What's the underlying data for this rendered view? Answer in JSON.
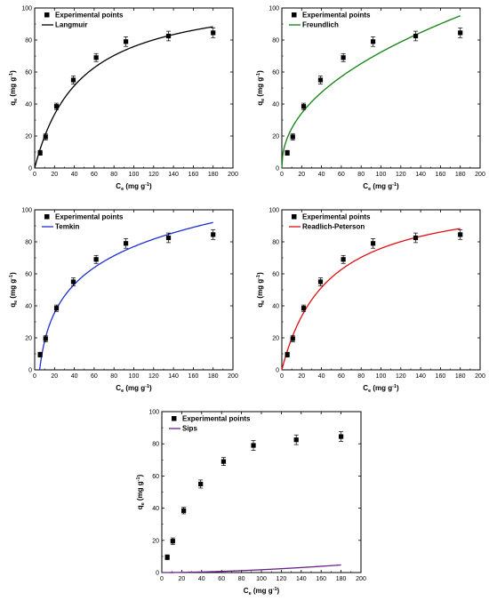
{
  "chart_data": [
    {
      "type": "scatter",
      "panel": "top-left",
      "xlabel": "Ce (mg g-1)",
      "ylabel": "qe (mg g-1)",
      "xlabel_main": "C",
      "xlabel_sub": "e",
      "xlabel_unit": " (mg g",
      "xlabel_sup": "-1",
      "xlabel_close": ")",
      "ylabel_main": "q",
      "ylabel_sub": "e",
      "ylabel_unit": " (mg g",
      "ylabel_sup": "-1",
      "ylabel_close": ")",
      "xlim": [
        0,
        200
      ],
      "ylim": [
        0,
        100
      ],
      "xticks": [
        0,
        20,
        40,
        60,
        80,
        100,
        120,
        140,
        160,
        180,
        200
      ],
      "yticks": [
        0,
        20,
        40,
        60,
        80,
        100
      ],
      "grid": false,
      "legend_placement": "top-left",
      "points": {
        "name": "Experimental points",
        "x": [
          5.5,
          11,
          22,
          39,
          62,
          92,
          135,
          180
        ],
        "y": [
          9.5,
          19.5,
          38.5,
          55,
          69,
          79,
          82.5,
          84.5
        ],
        "err": [
          1.5,
          2,
          2,
          2.5,
          2.5,
          3,
          3,
          3
        ]
      },
      "fit": {
        "name": "Langmuir",
        "model": "langmuir",
        "color": "#000000",
        "params": {
          "qm": 111,
          "KL": 0.0216
        },
        "x_range": [
          0,
          180
        ]
      }
    },
    {
      "type": "scatter",
      "panel": "top-right",
      "xlabel": "Ce (mg g-1)",
      "ylabel": "qe (mg g-1)",
      "xlabel_main": "C",
      "xlabel_sub": "e",
      "xlabel_unit": " (mg g",
      "xlabel_sup": "-1",
      "xlabel_close": ")",
      "ylabel_main": "q",
      "ylabel_sub": "e",
      "ylabel_unit": " (mg g",
      "ylabel_sup": "-1",
      "ylabel_close": ")",
      "xlim": [
        0,
        200
      ],
      "ylim": [
        0,
        100
      ],
      "xticks": [
        0,
        20,
        40,
        60,
        80,
        100,
        120,
        140,
        160,
        180,
        200
      ],
      "yticks": [
        0,
        20,
        40,
        60,
        80,
        100
      ],
      "grid": false,
      "legend_placement": "top-left",
      "points": {
        "name": "Experimental points",
        "x": [
          5.5,
          11,
          22,
          39,
          62,
          92,
          135,
          180
        ],
        "y": [
          9.5,
          19.5,
          38.5,
          55,
          69,
          79,
          82.5,
          84.5
        ],
        "err": [
          1.5,
          2,
          2,
          2.5,
          2.5,
          3,
          3,
          3
        ]
      },
      "fit": {
        "name": "Freundlich",
        "model": "freundlich",
        "color": "#108010",
        "params": {
          "KF": 8.5,
          "n": 2.15
        },
        "x_range": [
          0,
          180
        ]
      }
    },
    {
      "type": "scatter",
      "panel": "middle-left",
      "xlabel": "Ce (mg g-1)",
      "ylabel": "qe (mg g-1)",
      "xlabel_main": "C",
      "xlabel_sub": "e",
      "xlabel_unit": " (mg g",
      "xlabel_sup": "-1",
      "xlabel_close": ")",
      "ylabel_main": "q",
      "ylabel_sub": "e",
      "ylabel_unit": " (mg g",
      "ylabel_sup": "-1",
      "ylabel_close": ")",
      "xlim": [
        0,
        200
      ],
      "ylim": [
        0,
        100
      ],
      "xticks": [
        0,
        20,
        40,
        60,
        80,
        100,
        120,
        140,
        160,
        180,
        200
      ],
      "yticks": [
        0,
        20,
        40,
        60,
        80,
        100
      ],
      "grid": false,
      "legend_placement": "top-left",
      "points": {
        "name": "Experimental points",
        "x": [
          5.5,
          11,
          22,
          39,
          62,
          92,
          135,
          180
        ],
        "y": [
          9.5,
          19.5,
          38.5,
          55,
          69,
          79,
          82.5,
          84.5
        ],
        "err": [
          1.5,
          2,
          2,
          2.5,
          2.5,
          3,
          3,
          3
        ]
      },
      "fit": {
        "name": "Temkin",
        "model": "temkin",
        "color": "#1f2fd0",
        "params": {
          "B": 25.7,
          "KT": 0.2
        },
        "x_range": [
          5,
          180
        ]
      }
    },
    {
      "type": "scatter",
      "panel": "middle-right",
      "xlabel": "Ce (mg g-1)",
      "ylabel": "qe (mg g-1)",
      "xlabel_main": "C",
      "xlabel_sub": "e",
      "xlabel_unit": " (mg g",
      "xlabel_sup": "-1",
      "xlabel_close": ")",
      "ylabel_main": "q",
      "ylabel_sub": "e",
      "ylabel_unit": " (mg g",
      "ylabel_sup": "-1",
      "ylabel_close": ")",
      "xlim": [
        0,
        200
      ],
      "ylim": [
        0,
        100
      ],
      "xticks": [
        0,
        20,
        40,
        60,
        80,
        100,
        120,
        140,
        160,
        180,
        200
      ],
      "yticks": [
        0,
        20,
        40,
        60,
        80,
        100
      ],
      "grid": false,
      "legend_placement": "top-left",
      "points": {
        "name": "Experimental points",
        "x": [
          5.5,
          11,
          22,
          39,
          62,
          92,
          135,
          180
        ],
        "y": [
          9.5,
          19.5,
          38.5,
          55,
          69,
          79,
          82.5,
          84.5
        ],
        "err": [
          1.5,
          2,
          2,
          2.5,
          2.5,
          3,
          3,
          3
        ]
      },
      "fit": {
        "name": "Readlich-Peterson",
        "model": "langmuir",
        "color": "#e01010",
        "params": {
          "qm": 111,
          "KL": 0.0216
        },
        "x_range": [
          0,
          180
        ]
      }
    },
    {
      "type": "scatter",
      "panel": "bottom-center",
      "xlabel": "Ce (mg g-1)",
      "ylabel": "qe (mg g-1)",
      "xlabel_main": "C",
      "xlabel_sub": "e",
      "xlabel_unit": " (mg g",
      "xlabel_sup": "-1",
      "xlabel_close": ")",
      "ylabel_main": "q",
      "ylabel_sub": "e",
      "ylabel_unit": " (mg g",
      "ylabel_sup": "-1",
      "ylabel_close": ")",
      "xlim": [
        0,
        200
      ],
      "ylim": [
        0,
        100
      ],
      "xticks": [
        0,
        20,
        40,
        60,
        80,
        100,
        120,
        140,
        160,
        180,
        200
      ],
      "yticks": [
        0,
        20,
        40,
        60,
        80,
        100
      ],
      "grid": false,
      "legend_placement": "top-left",
      "points": {
        "name": "Experimental points",
        "x": [
          5.5,
          11,
          22,
          39,
          62,
          92,
          135,
          180
        ],
        "y": [
          9.5,
          19.5,
          38.5,
          55,
          69,
          79,
          82.5,
          84.5
        ],
        "err": [
          1.5,
          2,
          2,
          2.5,
          2.5,
          3,
          3,
          3
        ]
      },
      "fit": {
        "name": "Sips",
        "model": "sips",
        "color": "#6a1f8a",
        "params": {
          "qm": 85,
          "Ks": 0.0011,
          "n": 1.75
        },
        "x_range": [
          0,
          180
        ]
      }
    }
  ]
}
